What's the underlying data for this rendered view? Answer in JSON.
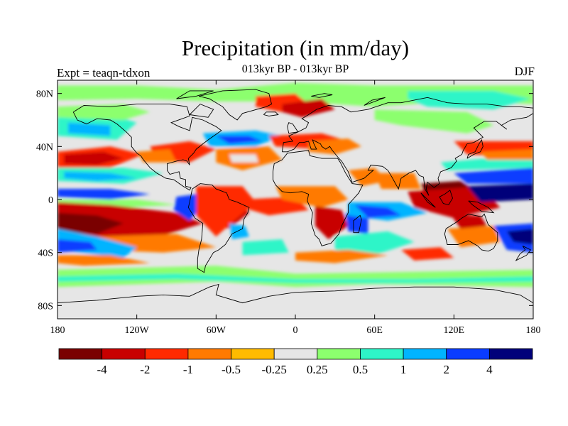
{
  "map": {
    "title": "Precipitation (in mm/day)",
    "subtitle": "013kyr BP - 013kyr BP",
    "left_label": "Expt = teaqn-tdxon",
    "right_label": "DJF",
    "lat_ticks": [
      {
        "lat": 80,
        "label": "80N"
      },
      {
        "lat": 40,
        "label": "40N"
      },
      {
        "lat": 0,
        "label": "0"
      },
      {
        "lat": -40,
        "label": "40S"
      },
      {
        "lat": -80,
        "label": "80S"
      }
    ],
    "lon_ticks": [
      {
        "lon": -180,
        "label": "180"
      },
      {
        "lon": -120,
        "label": "120W"
      },
      {
        "lon": -60,
        "label": "60W"
      },
      {
        "lon": 0,
        "label": "0"
      },
      {
        "lon": 60,
        "label": "60E"
      },
      {
        "lon": 120,
        "label": "120E"
      },
      {
        "lon": 180,
        "label": "180"
      }
    ],
    "colors": {
      "m4": "#7a0000",
      "m2": "#c80000",
      "m1": "#ff2a00",
      "m05": "#ff7a00",
      "m025": "#ffbb00",
      "zero": "#e6e6e6",
      "p025": "#8cff6e",
      "p05": "#2ef5c8",
      "p1": "#00b4ff",
      "p2": "#0a3cff",
      "p4": "#00007a",
      "coast": "#000000"
    }
  },
  "colorbar": {
    "colors": [
      "#7a0000",
      "#c80000",
      "#ff2a00",
      "#ff7a00",
      "#ffbb00",
      "#e6e6e6",
      "#8cff6e",
      "#2ef5c8",
      "#00b4ff",
      "#0a3cff",
      "#00007a"
    ],
    "labels": [
      "-4",
      "-2",
      "-1",
      "-0.5",
      "-0.25",
      "0.25",
      "0.5",
      "1",
      "2",
      "4"
    ]
  }
}
